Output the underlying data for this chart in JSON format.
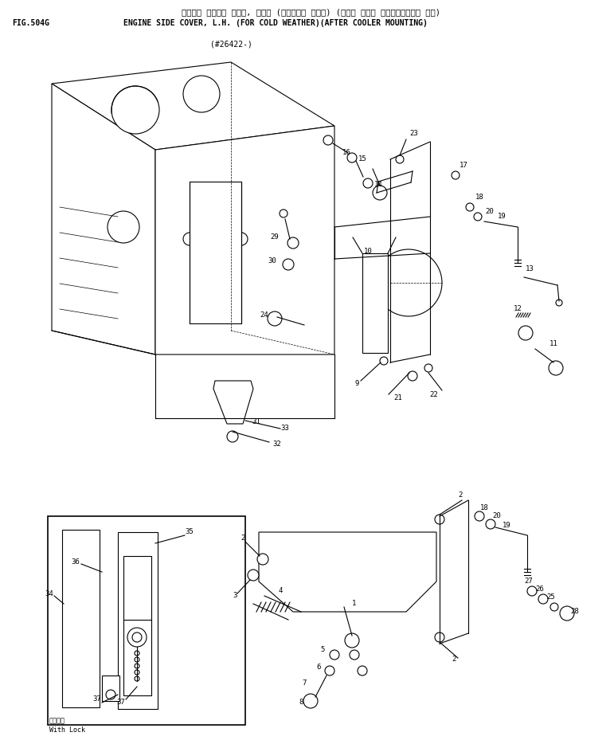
{
  "title_jp": "エンジン サイト゜ カバー, ヒダリ (カンレイチ ショウ) (アフタ クーラ マウンティンク゜ サキ)",
  "title_en": "ENGINE SIDE COVER, L.H. (FOR COLD WEATHER)(AFTER COOLER MOUNTING)",
  "fig_label": "FIG.504G",
  "part_number": "(#26422-)",
  "bg_color": "#ffffff",
  "line_color": "#000000",
  "text_color": "#000000",
  "font_size_title": 7.5,
  "font_size_label": 7,
  "font_size_partno": 7,
  "with_lock_jp": "ロック付",
  "with_lock_en": "With Lock"
}
